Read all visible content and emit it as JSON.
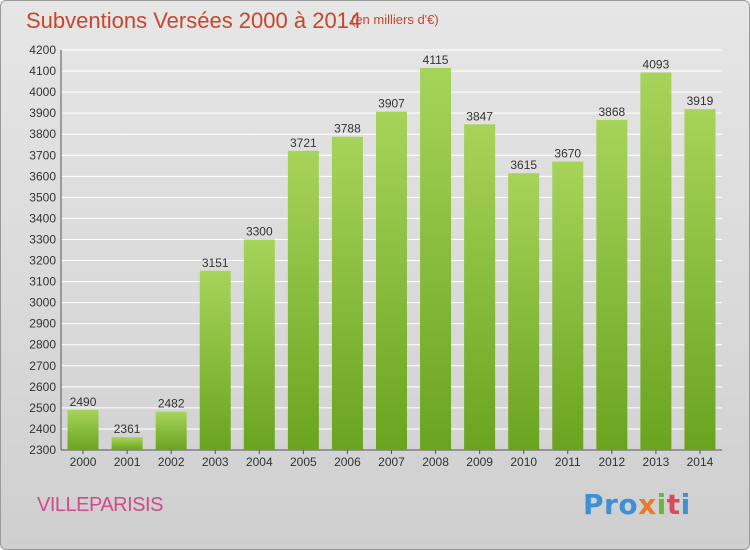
{
  "title": "Subventions Versées 2000 à 2014",
  "subtitle": "(en milliers d'€)",
  "location": "VILLEPARISIS",
  "logo": {
    "letters": [
      "Pro",
      "x",
      "i",
      "t",
      "i"
    ],
    "text": "Proxiti"
  },
  "colors": {
    "bar_light": "#a6d45a",
    "bar_dark": "#6aa41f",
    "title": "#c8452d",
    "location": "#d04a8c",
    "grid": "#ffffff"
  },
  "chart_data": {
    "type": "bar",
    "title": "Subventions Versées 2000 à 2014",
    "subtitle": "(en milliers d'€)",
    "categories": [
      "2000",
      "2001",
      "2002",
      "2003",
      "2004",
      "2005",
      "2006",
      "2007",
      "2008",
      "2009",
      "2010",
      "2011",
      "2012",
      "2013",
      "2014"
    ],
    "values": [
      2490,
      2361,
      2482,
      3151,
      3300,
      3721,
      3788,
      3907,
      4115,
      3847,
      3615,
      3670,
      3868,
      4093,
      3919
    ],
    "ylim": [
      2300,
      4200
    ],
    "yticks": [
      2300,
      2400,
      2500,
      2600,
      2700,
      2800,
      2900,
      3000,
      3100,
      3200,
      3300,
      3400,
      3500,
      3600,
      3700,
      3800,
      3900,
      4000,
      4100,
      4200
    ],
    "grid": true,
    "xlabel": "",
    "ylabel": ""
  }
}
